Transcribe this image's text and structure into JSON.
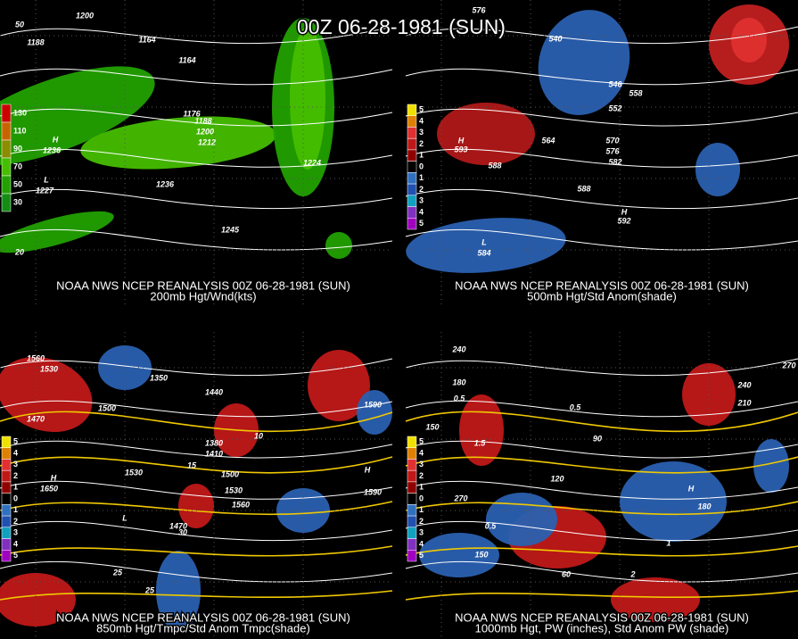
{
  "title": "00Z 06-28-1981 (SUN)",
  "panels": [
    {
      "caption": [
        "NOAA NWS NCEP REANALYSIS 00Z 06-28-1981 (SUN)",
        "200mb Hgt/Wnd(kts)"
      ],
      "legend": {
        "labels": [
          130,
          110,
          90,
          70,
          50,
          30
        ],
        "colors": [
          "#cc0000",
          "#c86400",
          "#8c8c00",
          "#46be00",
          "#22a000",
          "#148c14"
        ]
      },
      "labels": [
        1200,
        1188,
        1164,
        1164,
        1176,
        1188,
        1200,
        1212,
        1224,
        1236,
        1245,
        "H",
        1236,
        "L",
        1227,
        20,
        50
      ]
    },
    {
      "caption": [
        "NOAA NWS NCEP REANALYSIS 00Z 06-28-1981 (SUN)",
        "500mb Hgt/Std Anom(shade)"
      ],
      "legend": {
        "labels": [
          5,
          4,
          3,
          2,
          1,
          0,
          1,
          2,
          3,
          4,
          5
        ],
        "colors": [
          "#f0e000",
          "#e08000",
          "#e03030",
          "#c01818",
          "#900000",
          "#000000",
          "#3070c0",
          "#2050b0",
          "#10a0c0",
          "#8030c0",
          "#a000c0"
        ]
      },
      "labels": [
        576,
        540,
        546,
        552,
        558,
        564,
        570,
        576,
        582,
        588,
        588,
        "H",
        593,
        "L",
        584,
        "H",
        592
      ]
    },
    {
      "caption": [
        "NOAA NWS NCEP REANALYSIS 00Z 06-28-1981 (SUN)",
        "850mb Hgt/Tmpc/Std Anom Tmpc(shade)"
      ],
      "legend": {
        "labels": [
          5,
          4,
          3,
          2,
          1,
          0,
          1,
          2,
          3,
          4,
          5
        ],
        "colors": [
          "#f0e000",
          "#e08000",
          "#e03030",
          "#c01818",
          "#900000",
          "#000000",
          "#3070c0",
          "#2050b0",
          "#10a0c0",
          "#8030c0",
          "#a000c0"
        ]
      },
      "labels": [
        1560,
        1530,
        1500,
        1470,
        1350,
        1440,
        1380,
        1410,
        1500,
        1530,
        1560,
        1590,
        1590,
        1530,
        1470,
        "H",
        1650,
        "L",
        "H",
        25,
        30,
        15,
        10,
        25
      ]
    },
    {
      "caption": [
        "NOAA NWS NCEP REANALYSIS 00Z 06-28-1981 (SUN)",
        "1000mb Hgt, PW (inches), Std Anom PW (shade)"
      ],
      "legend": {
        "labels": [
          5,
          4,
          3,
          2,
          1,
          0,
          1,
          2,
          3,
          4,
          5
        ],
        "colors": [
          "#f0e000",
          "#e08000",
          "#e03030",
          "#c01818",
          "#900000",
          "#000000",
          "#3070c0",
          "#2050b0",
          "#10a0c0",
          "#8030c0",
          "#a000c0"
        ]
      },
      "labels": [
        240,
        180,
        150,
        0.5,
        0.5,
        90,
        120,
        270,
        150,
        60,
        180,
        "H",
        210,
        240,
        270,
        0.5,
        1.5,
        1,
        2
      ]
    }
  ]
}
